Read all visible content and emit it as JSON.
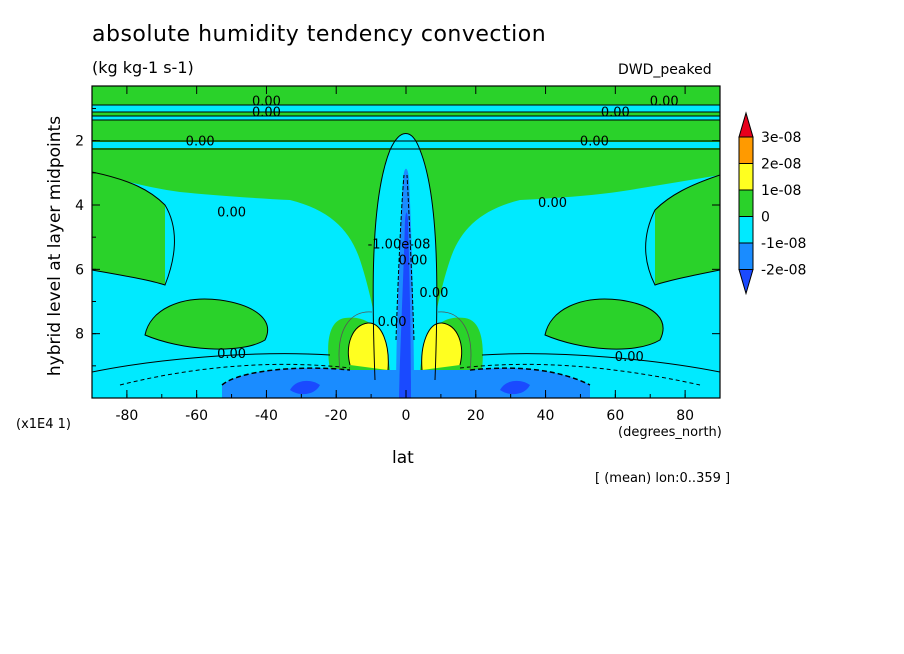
{
  "chart_data": {
    "type": "heatmap",
    "title": "absolute humidity tendency convection",
    "units": "(kg kg-1 s-1)",
    "dataset": "DWD_peaked",
    "subtitle": "[ (mean) lon:0..359 ]",
    "xlabel": "lat",
    "xunits": "(degrees_north)",
    "ylabel": "hybrid level at layer midpoints",
    "yscale": "(x1E4 1)",
    "xlim": [
      -90,
      90
    ],
    "ylim": [
      10,
      0.3
    ],
    "xticks": [
      -80,
      -60,
      -40,
      -20,
      0,
      20,
      40,
      60,
      80
    ],
    "yticks": [
      2,
      4,
      6,
      8
    ],
    "legend": {
      "position": "right",
      "levels": [
        "3e-08",
        "2e-08",
        "1e-08",
        "0",
        "-1e-08",
        "-2e-08"
      ],
      "colors": [
        "#e8001c",
        "#ff9a00",
        "#ffff20",
        "#2ad22a",
        "#00eaff",
        "#1a8cff",
        "#1a4aff"
      ]
    },
    "contour_labels": [
      {
        "text": "0.00",
        "x": -40,
        "y": 1.1
      },
      {
        "text": "0.00",
        "x": -40,
        "y": 0.75
      },
      {
        "text": "0.00",
        "x": 74,
        "y": 0.75
      },
      {
        "text": "0.00",
        "x": 60,
        "y": 1.1
      },
      {
        "text": "0.00",
        "x": -59,
        "y": 2.0
      },
      {
        "text": "0.00",
        "x": 54,
        "y": 2.0
      },
      {
        "text": "0.00",
        "x": -50,
        "y": 4.2
      },
      {
        "text": "0.00",
        "x": 42,
        "y": 3.9
      },
      {
        "text": "0.00",
        "x": -50,
        "y": 8.6
      },
      {
        "text": "0.00",
        "x": 64,
        "y": 8.7
      },
      {
        "text": "0.00",
        "x": 8,
        "y": 6.7
      },
      {
        "text": "-1.00e-08",
        "x": -2,
        "y": 5.2
      },
      {
        "text": "0.00",
        "x": -4,
        "y": 7.6
      },
      {
        "text": "0.00",
        "x": 2,
        "y": 5.7
      }
    ]
  }
}
